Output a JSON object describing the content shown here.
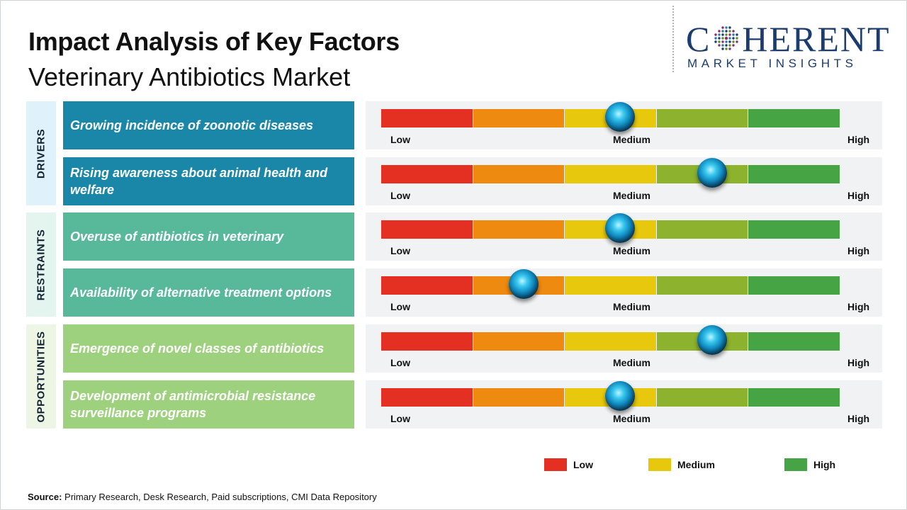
{
  "title": "Impact Analysis of Key Factors",
  "subtitle": "Veterinary Antibiotics Market",
  "logo": {
    "word_left": "C",
    "word_right": "HERENT",
    "tagline": "MARKET INSIGHTS",
    "color": "#1b3c6e"
  },
  "colors": {
    "low": "#e33022",
    "low_medium": "#ee8a0f",
    "medium": "#e8c80c",
    "medium_high": "#8db22d",
    "high": "#47a445",
    "drivers": "#1a87a8",
    "drivers_bg": "#dff2fb",
    "restraints": "#57b99a",
    "restraints_bg": "#e4f4ee",
    "opportunities": "#9ed17e",
    "opportunities_bg": "#edf6e5"
  },
  "chart_data": {
    "type": "table",
    "scale_levels": [
      "Low",
      "Medium",
      "High"
    ],
    "scale_segments": 5,
    "categories": [
      {
        "name": "DRIVERS",
        "factors": [
          {
            "label": "Growing incidence of zoonotic diseases",
            "impact": 0.52
          },
          {
            "label": "Rising awareness about animal health and welfare",
            "impact": 0.72
          }
        ]
      },
      {
        "name": "RESTRAINTS",
        "factors": [
          {
            "label": "Overuse of antibiotics in veterinary",
            "impact": 0.52
          },
          {
            "label": "Availability of alternative treatment options",
            "impact": 0.31
          }
        ]
      },
      {
        "name": "OPPORTUNITIES",
        "factors": [
          {
            "label": "Emergence of novel classes of antibiotics",
            "impact": 0.72
          },
          {
            "label": "Development of antimicrobial resistance surveillance programs",
            "impact": 0.52
          }
        ]
      }
    ],
    "legend": [
      {
        "label": "Low",
        "color": "#e33022"
      },
      {
        "label": "Medium",
        "color": "#e8c80c"
      },
      {
        "label": "High",
        "color": "#47a445"
      }
    ]
  },
  "source": {
    "label": "Source:",
    "text": "Primary Research, Desk Research, Paid subscriptions, CMI Data Repository"
  }
}
